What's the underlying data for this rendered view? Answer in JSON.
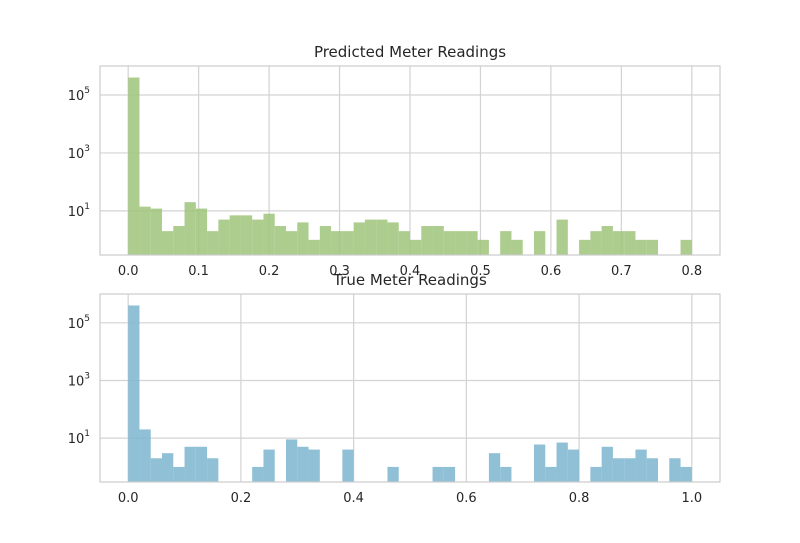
{
  "chart_data": [
    {
      "type": "bar",
      "title": "Predicted Meter Readings",
      "xlabel": "",
      "ylabel": "",
      "yscale": "log",
      "bar_color": "#9dc47a",
      "xlim": [
        -0.04,
        0.84
      ],
      "ylim": [
        0.3,
        1000000
      ],
      "x_ticks": [
        0.0,
        0.1,
        0.2,
        0.3,
        0.4,
        0.5,
        0.6,
        0.7,
        0.8
      ],
      "x_tick_labels": [
        "0.0",
        "0.1",
        "0.2",
        "0.3",
        "0.4",
        "0.5",
        "0.6",
        "0.7",
        "0.8"
      ],
      "y_ticks": [
        {
          "value": 10,
          "base": "10",
          "exp": "1"
        },
        {
          "value": 1000,
          "base": "10",
          "exp": "3"
        },
        {
          "value": 100000,
          "base": "10",
          "exp": "5"
        }
      ],
      "bins": [
        0.0,
        0.016,
        0.032,
        0.048,
        0.064,
        0.08,
        0.096,
        0.112,
        0.128,
        0.144,
        0.16,
        0.176,
        0.192,
        0.208,
        0.224,
        0.24,
        0.256,
        0.272,
        0.288,
        0.304,
        0.32,
        0.336,
        0.352,
        0.368,
        0.384,
        0.4,
        0.416,
        0.432,
        0.448,
        0.464,
        0.48,
        0.496,
        0.512,
        0.528,
        0.544,
        0.56,
        0.576,
        0.592,
        0.608,
        0.624,
        0.64,
        0.656,
        0.672,
        0.688,
        0.704,
        0.72,
        0.736,
        0.752,
        0.768,
        0.784,
        0.8
      ],
      "counts": [
        400000,
        14,
        12,
        2,
        3,
        20,
        12,
        2,
        5,
        7,
        7,
        5,
        8,
        3,
        2,
        4,
        1,
        3,
        2,
        2,
        4,
        5,
        5,
        4,
        2,
        1,
        3,
        3,
        2,
        2,
        2,
        1,
        0,
        2,
        1,
        0,
        2,
        0,
        5,
        0,
        1,
        2,
        3,
        2,
        2,
        1,
        1,
        0,
        0,
        1
      ]
    },
    {
      "type": "bar",
      "title": "True Meter Readings",
      "xlabel": "",
      "ylabel": "",
      "yscale": "log",
      "bar_color": "#7bb5cf",
      "xlim": [
        -0.05,
        1.05
      ],
      "ylim": [
        0.3,
        1000000
      ],
      "x_ticks": [
        0.0,
        0.2,
        0.4,
        0.6,
        0.8,
        1.0
      ],
      "x_tick_labels": [
        "0.0",
        "0.2",
        "0.4",
        "0.6",
        "0.8",
        "1.0"
      ],
      "y_ticks": [
        {
          "value": 10,
          "base": "10",
          "exp": "1"
        },
        {
          "value": 1000,
          "base": "10",
          "exp": "3"
        },
        {
          "value": 100000,
          "base": "10",
          "exp": "5"
        }
      ],
      "bins": [
        0.0,
        0.02,
        0.04,
        0.06,
        0.08,
        0.1,
        0.12,
        0.14,
        0.16,
        0.18,
        0.2,
        0.22,
        0.24,
        0.26,
        0.28,
        0.3,
        0.32,
        0.34,
        0.36,
        0.38,
        0.4,
        0.42,
        0.44,
        0.46,
        0.48,
        0.5,
        0.52,
        0.54,
        0.56,
        0.58,
        0.6,
        0.62,
        0.64,
        0.66,
        0.68,
        0.7,
        0.72,
        0.74,
        0.76,
        0.78,
        0.8,
        0.82,
        0.84,
        0.86,
        0.88,
        0.9,
        0.92,
        0.94,
        0.96,
        0.98,
        1.0
      ],
      "counts": [
        400000,
        20,
        2,
        3,
        1,
        5,
        5,
        2,
        0,
        0,
        0,
        1,
        4,
        0,
        9,
        5,
        4,
        0,
        0,
        4,
        0,
        0,
        0,
        1,
        0,
        0,
        0,
        1,
        1,
        0,
        0,
        0,
        3,
        1,
        0,
        0,
        6,
        1,
        7,
        4,
        0,
        1,
        5,
        2,
        2,
        4,
        2,
        0,
        2,
        1
      ]
    }
  ]
}
